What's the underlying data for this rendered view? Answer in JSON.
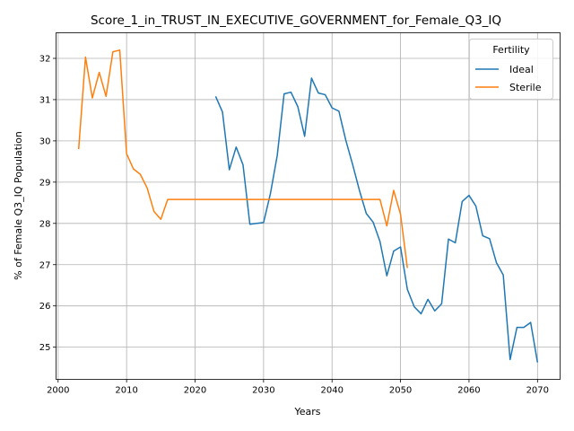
{
  "chart_data": {
    "type": "line",
    "title": "Score_1_in_TRUST_IN_EXECUTIVE_GOVERNMENT_for_Female_Q3_IQ",
    "xlabel": "Years",
    "ylabel": "% of Female Q3_IQ Population",
    "xlim": [
      1999.7,
      2073.3
    ],
    "ylim": [
      24.22,
      32.62
    ],
    "x_ticks": [
      2000,
      2010,
      2020,
      2030,
      2040,
      2050,
      2060,
      2070
    ],
    "y_ticks": [
      25,
      26,
      27,
      28,
      29,
      30,
      31,
      32
    ],
    "grid": true,
    "legend": {
      "title": "Fertility",
      "position": "upper right"
    },
    "series": [
      {
        "name": "Ideal",
        "color": "#1f77b4",
        "points": [
          [
            2023,
            31.08
          ],
          [
            2024,
            30.7
          ],
          [
            2025,
            29.3
          ],
          [
            2026,
            29.85
          ],
          [
            2027,
            29.42
          ],
          [
            2028,
            27.98
          ],
          [
            2029,
            28.0
          ],
          [
            2030,
            28.02
          ],
          [
            2031,
            28.72
          ],
          [
            2032,
            29.65
          ],
          [
            2033,
            31.14
          ],
          [
            2034,
            31.18
          ],
          [
            2035,
            30.83
          ],
          [
            2036,
            30.11
          ],
          [
            2037,
            31.52
          ],
          [
            2038,
            31.16
          ],
          [
            2039,
            31.12
          ],
          [
            2040,
            30.8
          ],
          [
            2041,
            30.72
          ],
          [
            2042,
            30.02
          ],
          [
            2043,
            29.43
          ],
          [
            2044,
            28.8
          ],
          [
            2045,
            28.24
          ],
          [
            2046,
            28.03
          ],
          [
            2047,
            27.56
          ],
          [
            2048,
            26.73
          ],
          [
            2049,
            27.33
          ],
          [
            2050,
            27.43
          ],
          [
            2051,
            26.4
          ],
          [
            2052,
            25.98
          ],
          [
            2053,
            25.81
          ],
          [
            2054,
            26.16
          ],
          [
            2055,
            25.88
          ],
          [
            2056,
            26.05
          ],
          [
            2057,
            27.62
          ],
          [
            2058,
            27.53
          ],
          [
            2059,
            28.53
          ],
          [
            2060,
            28.68
          ],
          [
            2061,
            28.42
          ],
          [
            2062,
            27.7
          ],
          [
            2063,
            27.63
          ],
          [
            2064,
            27.05
          ],
          [
            2065,
            26.75
          ],
          [
            2066,
            24.7
          ],
          [
            2067,
            25.48
          ],
          [
            2068,
            25.48
          ],
          [
            2069,
            25.6
          ],
          [
            2070,
            24.63
          ]
        ]
      },
      {
        "name": "Sterile",
        "color": "#ff7f0e",
        "points": [
          [
            2003,
            29.8
          ],
          [
            2004,
            32.03
          ],
          [
            2005,
            31.04
          ],
          [
            2006,
            31.66
          ],
          [
            2007,
            31.08
          ],
          [
            2008,
            32.16
          ],
          [
            2009,
            32.2
          ],
          [
            2010,
            29.69
          ],
          [
            2011,
            29.32
          ],
          [
            2012,
            29.19
          ],
          [
            2013,
            28.86
          ],
          [
            2014,
            28.29
          ],
          [
            2015,
            28.1
          ],
          [
            2016,
            28.58
          ],
          [
            2020,
            28.58
          ],
          [
            2030,
            28.58
          ],
          [
            2040,
            28.58
          ],
          [
            2047,
            28.58
          ],
          [
            2048,
            27.94
          ],
          [
            2049,
            28.8
          ],
          [
            2050,
            28.22
          ],
          [
            2051,
            26.92
          ]
        ]
      }
    ]
  }
}
